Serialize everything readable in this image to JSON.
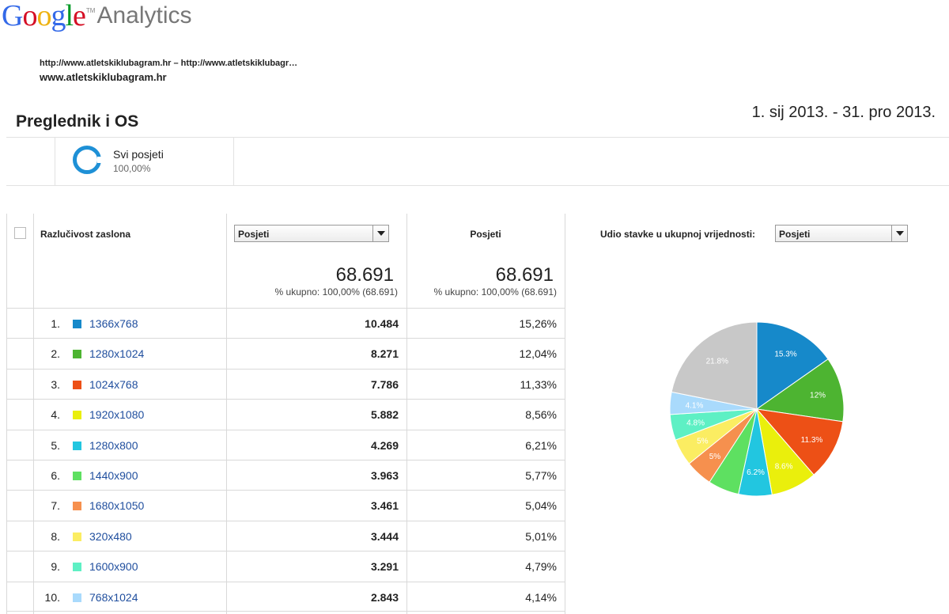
{
  "logo": {
    "google": "Google",
    "analytics": "Analytics",
    "tm": "TM"
  },
  "property": {
    "url": "http://www.atletskiklubagram.hr – http://www.atletskiklubagr…",
    "name": "www.atletskiklubagram.hr"
  },
  "report": {
    "title": "Preglednik i OS",
    "date_range": "1. sij 2013. - 31. pro 2013."
  },
  "segment": {
    "label": "Svi posjeti",
    "percent": "100,00%"
  },
  "table": {
    "dimension_header": "Razlučivost zaslona",
    "metric_select": "Posjeti",
    "metric2_header": "Posjeti",
    "share_label": "Udio stavke u ukupnoj vrijednosti:",
    "share_select": "Posjeti",
    "total1": "68.691",
    "total1_sub": "% ukupno: 100,00% (68.691)",
    "total2": "68.691",
    "total2_sub": "% ukupno: 100,00% (68.691)",
    "rows": [
      {
        "idx": "1.",
        "label": "1366x768",
        "visits": "10.484",
        "pct": "15,26%",
        "color": "#1689ca"
      },
      {
        "idx": "2.",
        "label": "1280x1024",
        "visits": "8.271",
        "pct": "12,04%",
        "color": "#4db431"
      },
      {
        "idx": "3.",
        "label": "1024x768",
        "visits": "7.786",
        "pct": "11,33%",
        "color": "#ed5016"
      },
      {
        "idx": "4.",
        "label": "1920x1080",
        "visits": "5.882",
        "pct": "8,56%",
        "color": "#eaef0c"
      },
      {
        "idx": "5.",
        "label": "1280x800",
        "visits": "4.269",
        "pct": "6,21%",
        "color": "#22c6e0"
      },
      {
        "idx": "6.",
        "label": "1440x900",
        "visits": "3.963",
        "pct": "5,77%",
        "color": "#5ee061"
      },
      {
        "idx": "7.",
        "label": "1680x1050",
        "visits": "3.461",
        "pct": "5,04%",
        "color": "#f6904e"
      },
      {
        "idx": "8.",
        "label": "320x480",
        "visits": "3.444",
        "pct": "5,01%",
        "color": "#fbed62"
      },
      {
        "idx": "9.",
        "label": "1600x900",
        "visits": "3.291",
        "pct": "4,79%",
        "color": "#5ef0c4"
      },
      {
        "idx": "10.",
        "label": "768x1024",
        "visits": "2.843",
        "pct": "4,14%",
        "color": "#a9dafc"
      }
    ]
  },
  "chart_data": {
    "type": "pie",
    "slices": [
      {
        "label": "15.3%",
        "value": 15.26,
        "color": "#1689ca"
      },
      {
        "label": "12%",
        "value": 12.04,
        "color": "#4db431"
      },
      {
        "label": "11.3%",
        "value": 11.33,
        "color": "#ed5016"
      },
      {
        "label": "8.6%",
        "value": 8.56,
        "color": "#eaef0c"
      },
      {
        "label": "6.2%",
        "value": 6.21,
        "color": "#22c6e0"
      },
      {
        "label": "",
        "value": 5.77,
        "color": "#5ee061"
      },
      {
        "label": "5%",
        "value": 5.04,
        "color": "#f6904e"
      },
      {
        "label": "5%",
        "value": 5.01,
        "color": "#fbed62"
      },
      {
        "label": "4.8%",
        "value": 4.79,
        "color": "#5ef0c4"
      },
      {
        "label": "4.1%",
        "value": 4.14,
        "color": "#a9dafc"
      },
      {
        "label": "21.8%",
        "value": 21.85,
        "color": "#c8c8c8"
      }
    ]
  }
}
